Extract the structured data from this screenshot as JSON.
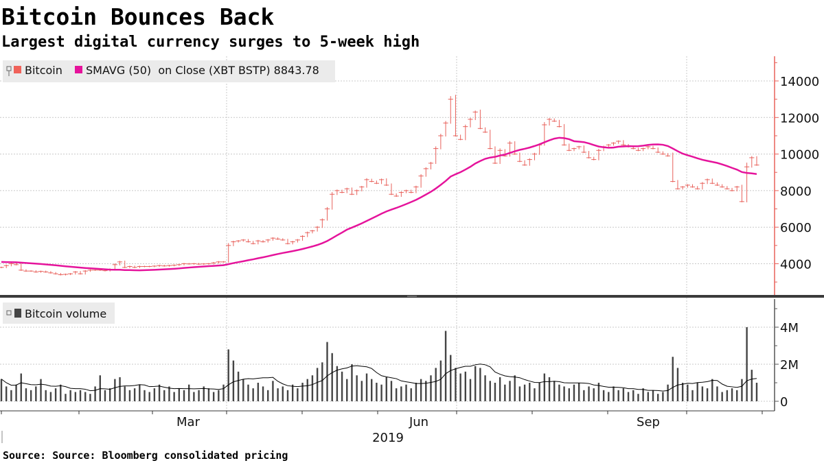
{
  "header": {
    "title": "Bitcoin Bounces Back",
    "subtitle": "Largest digital currency surges to 5-week high"
  },
  "footer": {
    "source": "Source: Source: Bloomberg consolidated pricing"
  },
  "colors": {
    "price": "#e8605a",
    "sma": "#e5139b",
    "volume": "#444444",
    "axis_price": "#e8605a"
  },
  "chart_data": [
    {
      "type": "line",
      "panel": "price",
      "legend": [
        {
          "name": "Bitcoin",
          "color": "#f0625a"
        },
        {
          "name": "SMAVG (50)  on Close (XBT BSTP) 8843.78",
          "color": "#e5139b"
        }
      ],
      "sma_window_points": 25,
      "ylim": [
        2500,
        15000
      ],
      "yticks": [
        4000,
        6000,
        8000,
        10000,
        12000,
        14000
      ],
      "ytick_labels": [
        "4000",
        "6000",
        "8000",
        "10000",
        "12000",
        "14000"
      ],
      "x_start": "2019-01-01",
      "x_end": "2019-10-29",
      "x_step_days": 2,
      "close": [
        3800,
        3900,
        4000,
        3950,
        3650,
        3600,
        3600,
        3550,
        3580,
        3550,
        3500,
        3450,
        3400,
        3420,
        3450,
        3550,
        3450,
        3600,
        3650,
        3650,
        3650,
        3620,
        3700,
        3950,
        4100,
        3800,
        3850,
        3800,
        3850,
        3850,
        3850,
        3870,
        3900,
        3880,
        3900,
        3920,
        3950,
        4000,
        3990,
        4000,
        3980,
        3990,
        4000,
        4050,
        4100,
        4100,
        5000,
        5200,
        5250,
        5300,
        5200,
        5100,
        5250,
        5200,
        5300,
        5400,
        5350,
        5300,
        5100,
        5200,
        5300,
        5500,
        5700,
        5800,
        6000,
        6400,
        7000,
        7800,
        8000,
        7900,
        8100,
        7800,
        8000,
        8200,
        8600,
        8500,
        8400,
        8600,
        8300,
        7800,
        7700,
        7900,
        8000,
        7900,
        8200,
        8800,
        9200,
        9500,
        10300,
        11000,
        11700,
        13000,
        11000,
        10800,
        11500,
        11900,
        12300,
        11400,
        11200,
        10300,
        9500,
        10200,
        9900,
        10600,
        10000,
        9600,
        9400,
        9700,
        10000,
        10500,
        11600,
        11900,
        11800,
        11500,
        10500,
        10200,
        10300,
        10400,
        10100,
        9800,
        9700,
        10200,
        10400,
        10500,
        10600,
        10700,
        10500,
        10400,
        10300,
        10200,
        10300,
        10400,
        10300,
        10100,
        10000,
        9900,
        8500,
        8100,
        8200,
        8300,
        8200,
        8100,
        8400,
        8600,
        8400,
        8300,
        8200,
        8100,
        8000,
        8200,
        7400,
        9300,
        9800,
        9400
      ]
    },
    {
      "type": "bar",
      "panel": "volume",
      "legend": [
        {
          "name": "Bitcoin volume",
          "color": "#444444"
        }
      ],
      "ylim": [
        0,
        5.2
      ],
      "unit": "M",
      "yticks": [
        0,
        2,
        4
      ],
      "ytick_labels": [
        "0",
        "2M",
        "4M"
      ],
      "xtick_labels": [
        "Mar",
        "Jun",
        "Sep"
      ],
      "year_label": "2019",
      "values": [
        1.2,
        0.8,
        0.6,
        0.9,
        1.5,
        0.7,
        0.6,
        0.8,
        1.2,
        0.6,
        0.5,
        0.7,
        0.9,
        0.4,
        0.6,
        0.5,
        0.6,
        0.5,
        0.4,
        0.8,
        1.4,
        0.6,
        0.7,
        1.2,
        1.3,
        0.8,
        0.6,
        0.7,
        0.9,
        0.6,
        0.5,
        0.7,
        0.9,
        0.6,
        0.8,
        0.5,
        0.7,
        0.6,
        0.9,
        0.5,
        0.6,
        0.8,
        0.7,
        0.5,
        0.6,
        0.9,
        2.8,
        2.2,
        1.6,
        1.2,
        0.9,
        0.7,
        1.0,
        0.8,
        0.6,
        1.1,
        0.7,
        0.8,
        0.6,
        0.9,
        0.7,
        1.0,
        1.2,
        1.4,
        1.8,
        2.1,
        3.2,
        2.6,
        1.9,
        1.6,
        1.2,
        2.0,
        1.4,
        1.1,
        1.5,
        1.2,
        1.0,
        0.9,
        1.3,
        1.1,
        0.7,
        0.8,
        0.9,
        0.7,
        1.0,
        1.2,
        1.1,
        1.4,
        1.8,
        2.2,
        3.8,
        2.5,
        1.8,
        1.5,
        1.6,
        1.2,
        1.9,
        1.8,
        1.4,
        1.1,
        1.0,
        1.3,
        0.9,
        1.1,
        1.4,
        0.8,
        0.9,
        1.0,
        0.7,
        1.0,
        1.5,
        1.3,
        1.1,
        0.9,
        0.8,
        0.7,
        0.9,
        1.0,
        0.6,
        0.8,
        0.7,
        1.0,
        0.6,
        0.5,
        0.8,
        0.6,
        0.7,
        0.5,
        0.6,
        0.4,
        0.7,
        0.5,
        0.6,
        0.4,
        0.5,
        0.9,
        2.4,
        1.8,
        1.0,
        0.9,
        0.6,
        1.0,
        0.8,
        0.7,
        1.2,
        0.8,
        0.5,
        0.6,
        0.7,
        0.6,
        1.2,
        4.0,
        1.7,
        1.0
      ]
    }
  ]
}
